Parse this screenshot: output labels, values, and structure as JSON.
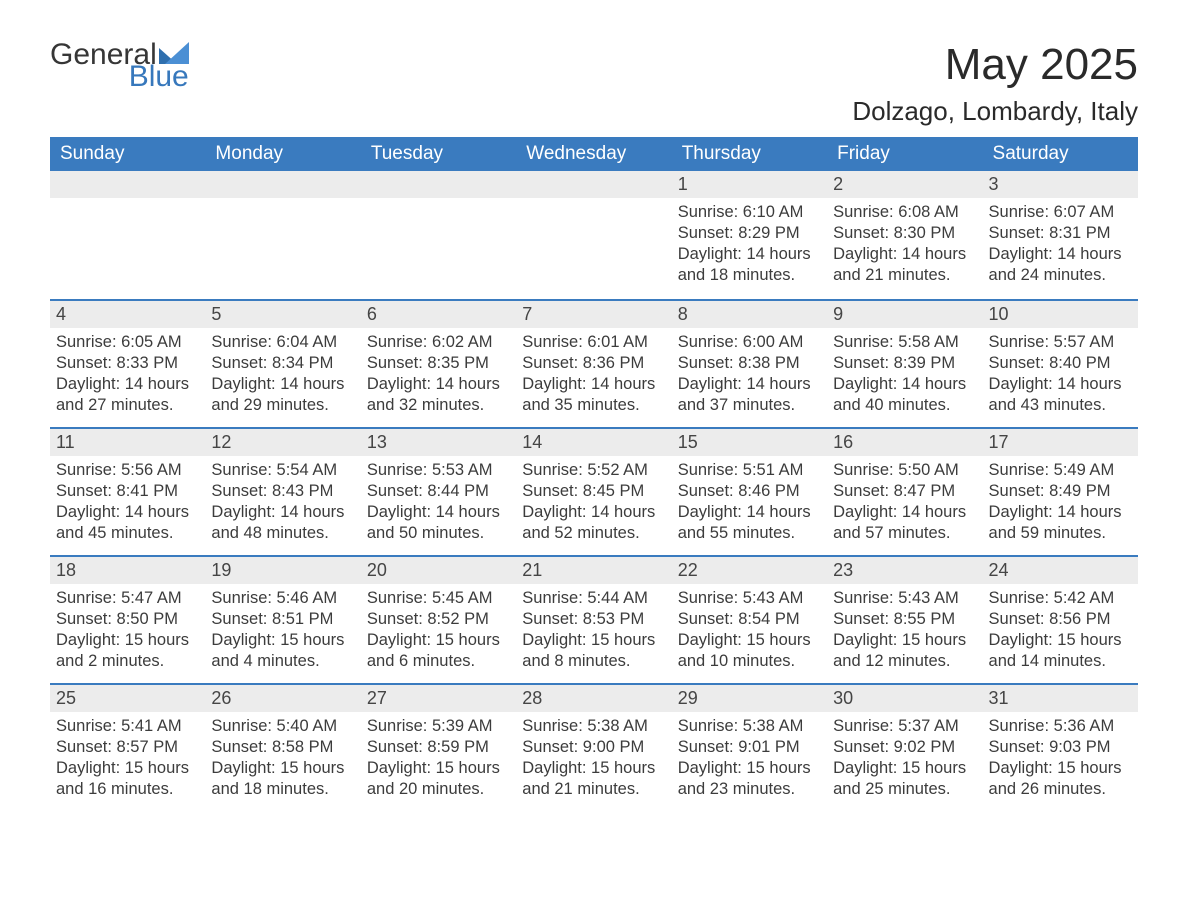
{
  "logo": {
    "general": "General",
    "blue": "Blue"
  },
  "title": "May 2025",
  "location": "Dolzago, Lombardy, Italy",
  "colors": {
    "header_bg": "#3a7bbf",
    "header_text": "#ffffff",
    "daynum_bg": "#ececec",
    "week_border": "#3a7bbf",
    "body_text": "#3c3c3c",
    "logo_blue": "#3778bc"
  },
  "weekdays": [
    "Sunday",
    "Monday",
    "Tuesday",
    "Wednesday",
    "Thursday",
    "Friday",
    "Saturday"
  ],
  "labels": {
    "sunrise": "Sunrise:",
    "sunset": "Sunset:",
    "daylight": "Daylight:",
    "hours_and": "hours and",
    "minutes": "minutes."
  },
  "weeks": [
    [
      null,
      null,
      null,
      null,
      {
        "n": "1",
        "sunrise": "6:10 AM",
        "sunset": "8:29 PM",
        "dl_h": 14,
        "dl_m": 18
      },
      {
        "n": "2",
        "sunrise": "6:08 AM",
        "sunset": "8:30 PM",
        "dl_h": 14,
        "dl_m": 21
      },
      {
        "n": "3",
        "sunrise": "6:07 AM",
        "sunset": "8:31 PM",
        "dl_h": 14,
        "dl_m": 24
      }
    ],
    [
      {
        "n": "4",
        "sunrise": "6:05 AM",
        "sunset": "8:33 PM",
        "dl_h": 14,
        "dl_m": 27
      },
      {
        "n": "5",
        "sunrise": "6:04 AM",
        "sunset": "8:34 PM",
        "dl_h": 14,
        "dl_m": 29
      },
      {
        "n": "6",
        "sunrise": "6:02 AM",
        "sunset": "8:35 PM",
        "dl_h": 14,
        "dl_m": 32
      },
      {
        "n": "7",
        "sunrise": "6:01 AM",
        "sunset": "8:36 PM",
        "dl_h": 14,
        "dl_m": 35
      },
      {
        "n": "8",
        "sunrise": "6:00 AM",
        "sunset": "8:38 PM",
        "dl_h": 14,
        "dl_m": 37
      },
      {
        "n": "9",
        "sunrise": "5:58 AM",
        "sunset": "8:39 PM",
        "dl_h": 14,
        "dl_m": 40
      },
      {
        "n": "10",
        "sunrise": "5:57 AM",
        "sunset": "8:40 PM",
        "dl_h": 14,
        "dl_m": 43
      }
    ],
    [
      {
        "n": "11",
        "sunrise": "5:56 AM",
        "sunset": "8:41 PM",
        "dl_h": 14,
        "dl_m": 45
      },
      {
        "n": "12",
        "sunrise": "5:54 AM",
        "sunset": "8:43 PM",
        "dl_h": 14,
        "dl_m": 48
      },
      {
        "n": "13",
        "sunrise": "5:53 AM",
        "sunset": "8:44 PM",
        "dl_h": 14,
        "dl_m": 50
      },
      {
        "n": "14",
        "sunrise": "5:52 AM",
        "sunset": "8:45 PM",
        "dl_h": 14,
        "dl_m": 52
      },
      {
        "n": "15",
        "sunrise": "5:51 AM",
        "sunset": "8:46 PM",
        "dl_h": 14,
        "dl_m": 55
      },
      {
        "n": "16",
        "sunrise": "5:50 AM",
        "sunset": "8:47 PM",
        "dl_h": 14,
        "dl_m": 57
      },
      {
        "n": "17",
        "sunrise": "5:49 AM",
        "sunset": "8:49 PM",
        "dl_h": 14,
        "dl_m": 59
      }
    ],
    [
      {
        "n": "18",
        "sunrise": "5:47 AM",
        "sunset": "8:50 PM",
        "dl_h": 15,
        "dl_m": 2
      },
      {
        "n": "19",
        "sunrise": "5:46 AM",
        "sunset": "8:51 PM",
        "dl_h": 15,
        "dl_m": 4
      },
      {
        "n": "20",
        "sunrise": "5:45 AM",
        "sunset": "8:52 PM",
        "dl_h": 15,
        "dl_m": 6
      },
      {
        "n": "21",
        "sunrise": "5:44 AM",
        "sunset": "8:53 PM",
        "dl_h": 15,
        "dl_m": 8
      },
      {
        "n": "22",
        "sunrise": "5:43 AM",
        "sunset": "8:54 PM",
        "dl_h": 15,
        "dl_m": 10
      },
      {
        "n": "23",
        "sunrise": "5:43 AM",
        "sunset": "8:55 PM",
        "dl_h": 15,
        "dl_m": 12
      },
      {
        "n": "24",
        "sunrise": "5:42 AM",
        "sunset": "8:56 PM",
        "dl_h": 15,
        "dl_m": 14
      }
    ],
    [
      {
        "n": "25",
        "sunrise": "5:41 AM",
        "sunset": "8:57 PM",
        "dl_h": 15,
        "dl_m": 16
      },
      {
        "n": "26",
        "sunrise": "5:40 AM",
        "sunset": "8:58 PM",
        "dl_h": 15,
        "dl_m": 18
      },
      {
        "n": "27",
        "sunrise": "5:39 AM",
        "sunset": "8:59 PM",
        "dl_h": 15,
        "dl_m": 20
      },
      {
        "n": "28",
        "sunrise": "5:38 AM",
        "sunset": "9:00 PM",
        "dl_h": 15,
        "dl_m": 21
      },
      {
        "n": "29",
        "sunrise": "5:38 AM",
        "sunset": "9:01 PM",
        "dl_h": 15,
        "dl_m": 23
      },
      {
        "n": "30",
        "sunrise": "5:37 AM",
        "sunset": "9:02 PM",
        "dl_h": 15,
        "dl_m": 25
      },
      {
        "n": "31",
        "sunrise": "5:36 AM",
        "sunset": "9:03 PM",
        "dl_h": 15,
        "dl_m": 26
      }
    ]
  ]
}
